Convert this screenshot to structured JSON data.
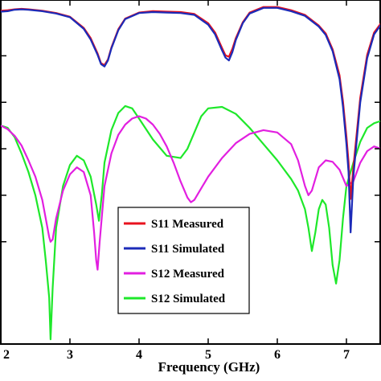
{
  "chart_data": {
    "type": "line",
    "xlabel": "Frequency (GHz)",
    "ylabel": "",
    "title": "",
    "xlim": [
      2.0,
      7.5
    ],
    "ylim": [
      -72,
      2
    ],
    "x_ticks": [
      2,
      3,
      4,
      5,
      6,
      7
    ],
    "x_tick_labels": [
      "2",
      "3",
      "4",
      "5",
      "6",
      "7"
    ],
    "y_ticks": [
      -50,
      -40,
      -30,
      -20,
      -10
    ],
    "grid": false,
    "legend_position": "lower-center",
    "series": [
      {
        "name": "S11 Measured",
        "color": "#e8121e",
        "x": [
          2.0,
          2.1,
          2.2,
          2.3,
          2.4,
          2.6,
          2.8,
          3.0,
          3.2,
          3.3,
          3.4,
          3.45,
          3.5,
          3.55,
          3.6,
          3.7,
          3.8,
          4.0,
          4.2,
          4.4,
          4.6,
          4.8,
          5.0,
          5.1,
          5.2,
          5.25,
          5.3,
          5.35,
          5.4,
          5.5,
          5.6,
          5.8,
          6.0,
          6.2,
          6.4,
          6.6,
          6.7,
          6.8,
          6.9,
          6.95,
          7.0,
          7.03,
          7.06,
          7.1,
          7.2,
          7.3,
          7.4,
          7.5
        ],
        "y": [
          -0.3,
          -0.2,
          0.0,
          0.1,
          0.0,
          -0.3,
          -0.8,
          -1.6,
          -4.0,
          -6.2,
          -9.5,
          -11.6,
          -12.0,
          -10.8,
          -8.2,
          -4.3,
          -2.0,
          -0.7,
          -0.4,
          -0.5,
          -0.6,
          -1.0,
          -3.0,
          -5.0,
          -8.3,
          -9.9,
          -10.2,
          -8.5,
          -6.2,
          -2.8,
          -0.7,
          0.5,
          0.5,
          -0.2,
          -1.2,
          -3.5,
          -5.2,
          -8.6,
          -14.2,
          -19.8,
          -27.4,
          -32.8,
          -40.8,
          -34.0,
          -19.0,
          -9.8,
          -5.0,
          -3.0
        ]
      },
      {
        "name": "S11 Simulated",
        "color": "#1c2bb8",
        "x": [
          2.0,
          2.1,
          2.2,
          2.3,
          2.4,
          2.6,
          2.8,
          3.0,
          3.2,
          3.3,
          3.4,
          3.45,
          3.5,
          3.55,
          3.6,
          3.7,
          3.8,
          4.0,
          4.2,
          4.4,
          4.6,
          4.8,
          5.0,
          5.1,
          5.2,
          5.25,
          5.3,
          5.35,
          5.4,
          5.5,
          5.6,
          5.8,
          6.0,
          6.2,
          6.4,
          6.6,
          6.7,
          6.8,
          6.9,
          6.95,
          7.0,
          7.03,
          7.06,
          7.1,
          7.2,
          7.3,
          7.4,
          7.5
        ],
        "y": [
          -0.5,
          -0.4,
          -0.1,
          0.0,
          -0.1,
          -0.4,
          -0.9,
          -1.7,
          -4.2,
          -6.5,
          -9.8,
          -11.8,
          -12.3,
          -11.0,
          -8.4,
          -4.5,
          -2.1,
          -0.8,
          -0.6,
          -0.7,
          -0.8,
          -1.2,
          -3.3,
          -5.4,
          -8.8,
          -10.4,
          -11.0,
          -9.2,
          -6.6,
          -3.0,
          -0.9,
          0.3,
          0.3,
          -0.4,
          -1.4,
          -3.7,
          -5.5,
          -9.0,
          -15.0,
          -21.0,
          -29.0,
          -35.0,
          -48.0,
          -36.0,
          -20.0,
          -10.5,
          -5.4,
          -3.3
        ]
      },
      {
        "name": "S12 Measured",
        "color": "#e21fe0",
        "x": [
          2.0,
          2.1,
          2.2,
          2.3,
          2.4,
          2.5,
          2.6,
          2.65,
          2.7,
          2.72,
          2.75,
          2.8,
          2.9,
          3.0,
          3.1,
          3.2,
          3.3,
          3.35,
          3.38,
          3.4,
          3.43,
          3.5,
          3.6,
          3.7,
          3.8,
          3.9,
          4.0,
          4.1,
          4.2,
          4.3,
          4.4,
          4.5,
          4.6,
          4.7,
          4.75,
          4.8,
          4.9,
          5.0,
          5.2,
          5.4,
          5.6,
          5.8,
          6.0,
          6.2,
          6.3,
          6.4,
          6.45,
          6.5,
          6.6,
          6.7,
          6.8,
          6.9,
          7.0,
          7.1,
          7.2,
          7.3,
          7.4,
          7.5
        ],
        "y": [
          -25.0,
          -25.8,
          -27.2,
          -29.3,
          -32.5,
          -36.0,
          -41.0,
          -45.0,
          -49.0,
          -50.0,
          -49.5,
          -45.0,
          -39.0,
          -35.5,
          -34.0,
          -35.0,
          -40.0,
          -48.0,
          -54.0,
          -56.0,
          -50.0,
          -38.0,
          -31.0,
          -27.0,
          -24.8,
          -23.5,
          -23.0,
          -23.5,
          -24.8,
          -26.8,
          -29.5,
          -33.0,
          -37.0,
          -40.5,
          -41.5,
          -41.0,
          -38.5,
          -36.0,
          -32.0,
          -28.8,
          -26.8,
          -26.0,
          -26.5,
          -29.0,
          -32.5,
          -38.0,
          -40.0,
          -39.0,
          -34.0,
          -32.5,
          -32.8,
          -34.5,
          -38.0,
          -37.0,
          -33.0,
          -30.5,
          -29.5,
          -30.0
        ]
      },
      {
        "name": "S12 Simulated",
        "color": "#1ee82a",
        "x": [
          2.0,
          2.1,
          2.2,
          2.3,
          2.4,
          2.5,
          2.6,
          2.65,
          2.7,
          2.72,
          2.75,
          2.8,
          2.9,
          3.0,
          3.1,
          3.2,
          3.3,
          3.38,
          3.42,
          3.46,
          3.5,
          3.6,
          3.7,
          3.8,
          3.9,
          4.0,
          4.2,
          4.4,
          4.6,
          4.7,
          4.8,
          4.9,
          5.0,
          5.2,
          5.4,
          5.6,
          5.8,
          6.0,
          6.2,
          6.3,
          6.4,
          6.45,
          6.5,
          6.55,
          6.6,
          6.65,
          6.7,
          6.75,
          6.8,
          6.85,
          6.9,
          6.95,
          7.0,
          7.1,
          7.2,
          7.3,
          7.4,
          7.5
        ],
        "y": [
          -25.0,
          -25.5,
          -27.5,
          -31.0,
          -35.0,
          -40.0,
          -47.0,
          -54.0,
          -62.0,
          -71.0,
          -60.0,
          -47.0,
          -38.0,
          -33.5,
          -31.5,
          -32.5,
          -36.0,
          -42.0,
          -45.5,
          -40.0,
          -33.0,
          -26.0,
          -22.3,
          -20.8,
          -21.3,
          -23.5,
          -28.0,
          -31.5,
          -32.0,
          -30.0,
          -26.5,
          -23.0,
          -21.3,
          -21.0,
          -22.5,
          -25.5,
          -29.0,
          -32.5,
          -36.5,
          -39.0,
          -43.0,
          -47.0,
          -52.0,
          -48.0,
          -43.0,
          -41.0,
          -42.0,
          -47.0,
          -55.0,
          -59.0,
          -54.0,
          -45.0,
          -38.0,
          -33.0,
          -28.5,
          -25.5,
          -24.5,
          -24.0
        ]
      }
    ]
  }
}
